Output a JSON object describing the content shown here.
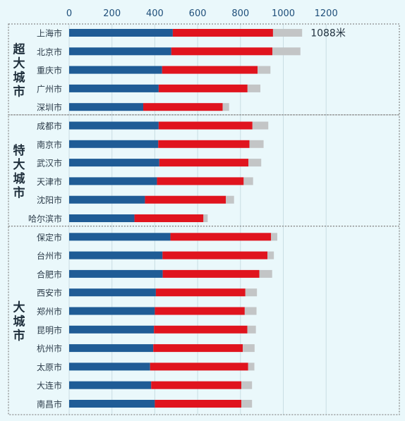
{
  "chart_data": {
    "type": "bar",
    "orientation": "horizontal",
    "stacked": true,
    "xlim": [
      0,
      1200
    ],
    "x_ticks": [
      "0",
      "200",
      "400",
      "600",
      "800",
      "1000",
      "1200"
    ],
    "grid": "vertical",
    "colors": {
      "segment1": "#1f5c96",
      "segment2": "#e0141e",
      "segment3": "#c3c5c6",
      "grid": "#c9dde3",
      "border": "#8c8c8c",
      "background": "#eaf8fb"
    },
    "annotation": "1088米",
    "groups": [
      {
        "label": "超大城市",
        "cities": [
          "上海市",
          "北京市",
          "重庆市",
          "广州市",
          "深圳市"
        ]
      },
      {
        "label": "特大城市",
        "cities": [
          "成都市",
          "南京市",
          "武汉市",
          "天津市",
          "沈阳市",
          "哈尔滨市"
        ]
      },
      {
        "label": "大城市",
        "cities": [
          "保定市",
          "台州市",
          "合肥市",
          "西安市",
          "郑州市",
          "昆明市",
          "杭州市",
          "太原市",
          "大连市",
          "南昌市"
        ]
      }
    ],
    "categories": [
      "上海市",
      "北京市",
      "重庆市",
      "广州市",
      "深圳市",
      "成都市",
      "南京市",
      "武汉市",
      "天津市",
      "沈阳市",
      "哈尔滨市",
      "保定市",
      "台州市",
      "合肥市",
      "西安市",
      "郑州市",
      "昆明市",
      "杭州市",
      "太原市",
      "大连市",
      "南昌市"
    ],
    "series": [
      {
        "values": [
          484,
          477,
          434,
          418,
          346,
          418,
          416,
          421,
          410,
          354,
          305,
          473,
          436,
          437,
          405,
          400,
          396,
          393,
          378,
          383,
          400
        ]
      },
      {
        "values": [
          468,
          472,
          446,
          415,
          371,
          438,
          426,
          416,
          405,
          378,
          322,
          470,
          490,
          451,
          418,
          420,
          436,
          418,
          458,
          421,
          404
        ]
      },
      {
        "values": [
          136,
          131,
          60,
          60,
          30,
          74,
          66,
          60,
          44,
          38,
          20,
          29,
          30,
          60,
          54,
          55,
          40,
          55,
          29,
          50,
          50
        ]
      }
    ]
  }
}
